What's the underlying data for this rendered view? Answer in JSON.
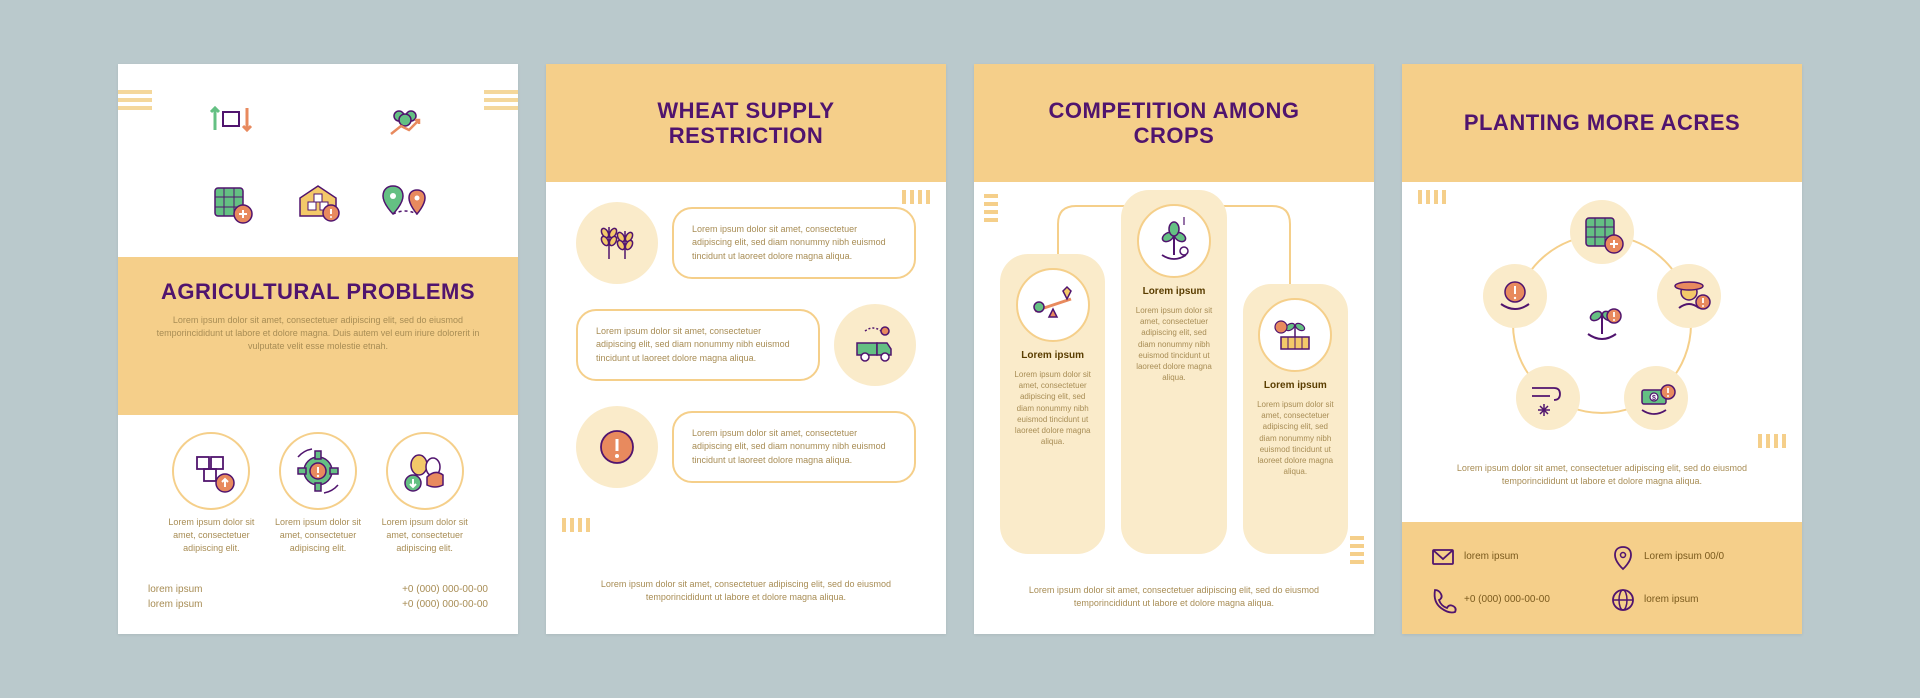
{
  "colors": {
    "background": "#bac9cc",
    "panel_bg": "#ffffff",
    "accent": "#f5cf8a",
    "accent_light": "#faebca",
    "title_color": "#50146e",
    "body_color": "#a88d55",
    "icon_stroke": "#50146e",
    "icon_green": "#64c083",
    "icon_orange": "#e88a5e",
    "icon_yellow": "#f3c969"
  },
  "global": {
    "lorem_short": "Lorem ipsum dolor sit amet, consectetuer adipiscing elit, sed diam nonummy nibh euismod tincidunt ut laoreet dolore magna aliqua.",
    "lorem_block": "Lorem ipsum dolor sit amet, consectetuer adipiscing elit, sed do eiusmod temporincididunt ut labore et dolore magna. Duis autem vel eum iriure dolorerit in vulputate velit esse molestie etnah."
  },
  "panel1": {
    "title": "AGRICULTURAL PROBLEMS",
    "subtitle": "Lorem ipsum dolor sit amet, consectetuer adipiscing elit, sed do eiusmod temporincididunt ut labore et dolore magna. Duis autem vel eum iriure dolorerit in vulputate velit esse molestie etnah.",
    "icons_top": [
      "arrows-up-down-icon",
      "people-chart-icon",
      "field-plus-icon",
      "warehouse-alert-icon",
      "map-pins-icon"
    ],
    "lower_icons": [
      {
        "icon": "cubes-price-up-icon",
        "text": "Lorem ipsum dolor sit amet, consectetuer adipiscing elit."
      },
      {
        "icon": "gear-alert-icon",
        "text": "Lorem ipsum dolor sit amet, consectetuer adipiscing elit."
      },
      {
        "icon": "eggs-price-down-icon",
        "text": "Lorem ipsum dolor sit amet, consectetuer adipiscing elit."
      }
    ],
    "footer_left": "lorem ipsum\nlorem ipsum",
    "footer_right": "+0 (000) 000-00-00\n+0 (000) 000-00-00"
  },
  "panel2": {
    "title": "WHEAT SUPPLY RESTRICTION",
    "rows": [
      {
        "icon": "wheat-icon",
        "side": "left",
        "text": "Lorem ipsum dolor sit amet, consectetuer adipiscing elit, sed diam nonummy nibh euismod tincidunt ut laoreet dolore magna aliqua."
      },
      {
        "icon": "truck-route-icon",
        "side": "right",
        "text": "Lorem ipsum dolor sit amet, consectetuer adipiscing elit, sed diam nonummy nibh euismod tincidunt ut laoreet dolore magna aliqua."
      },
      {
        "icon": "alert-circle-icon",
        "side": "left",
        "text": "Lorem ipsum dolor sit amet, consectetuer adipiscing elit, sed diam nonummy nibh euismod tincidunt ut laoreet dolore magna aliqua."
      }
    ],
    "bottom_text": "Lorem ipsum dolor sit amet, consectetuer adipiscing elit, sed do eiusmod temporincididunt ut labore et dolore magna aliqua."
  },
  "panel3": {
    "title": "COMPETITION AMONG CROPS",
    "columns": [
      {
        "icon": "seesaw-icon",
        "label": "Lorem ipsum",
        "text": "Lorem ipsum dolor sit amet, consectetuer adipiscing elit, sed diam nonummy nibh euismod tincidunt ut laoreet dolore magna aliqua."
      },
      {
        "icon": "plant-hand-icon",
        "label": "Lorem ipsum",
        "text": "Lorem ipsum dolor sit amet, consectetuer adipiscing elit, sed diam nonummy nibh euismod tincidunt ut laoreet dolore magna aliqua."
      },
      {
        "icon": "planter-box-icon",
        "label": "Lorem ipsum",
        "text": "Lorem ipsum dolor sit amet, consectetuer adipiscing elit, sed diam nonummy nibh euismod tincidunt ut laoreet dolore magna aliqua."
      }
    ],
    "bottom_text": "Lorem ipsum dolor sit amet, consectetuer adipiscing elit, sed do eiusmod temporincididunt ut labore et dolore magna aliqua."
  },
  "panel4": {
    "title": "PLANTING MORE ACRES",
    "center_icon": "sprout-hand-alert-icon",
    "ring_nodes": [
      {
        "icon": "field-plus-icon",
        "angle_deg": -90
      },
      {
        "icon": "farmer-alert-icon",
        "angle_deg": -18
      },
      {
        "icon": "money-hand-alert-icon",
        "angle_deg": 54
      },
      {
        "icon": "wind-snow-icon",
        "angle_deg": 126
      },
      {
        "icon": "hand-alert-icon",
        "angle_deg": 198
      }
    ],
    "body_text": "Lorem ipsum dolor sit amet, consectetuer adipiscing elit, sed do eiusmod temporincididunt ut labore et dolore magna aliqua.",
    "contacts": [
      {
        "icon": "mail-icon",
        "text": "lorem ipsum"
      },
      {
        "icon": "pin-icon",
        "text": "Lorem ipsum 00/0"
      },
      {
        "icon": "phone-icon",
        "text": "+0 (000) 000-00-00"
      },
      {
        "icon": "globe-icon",
        "text": "lorem ipsum"
      }
    ]
  }
}
